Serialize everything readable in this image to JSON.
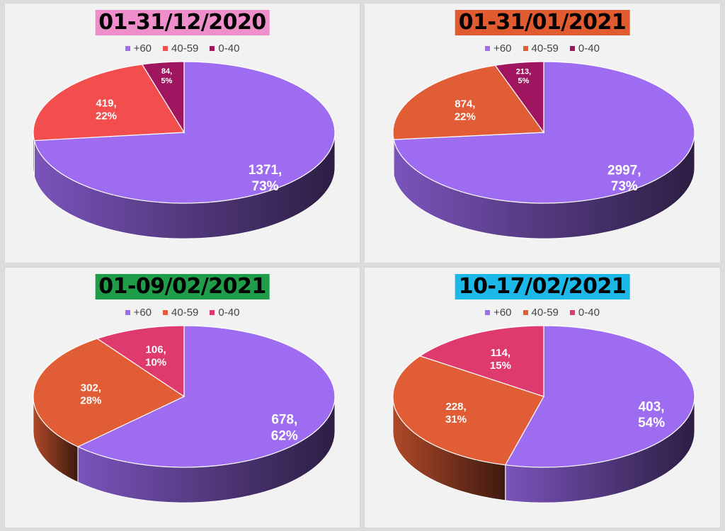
{
  "legend_labels": [
    "+60",
    "40-59",
    "0-40"
  ],
  "chart_data": [
    {
      "type": "pie",
      "title": "01-31/12/2020",
      "title_bg": "#ee8fcb",
      "categories": [
        "+60",
        "40-59",
        "0-40"
      ],
      "values": [
        1371,
        419,
        84
      ],
      "percent_labels": [
        "73%",
        "22%",
        "5%"
      ],
      "colors": [
        "#9d6cf0",
        "#f24e4e",
        "#a0155f"
      ]
    },
    {
      "type": "pie",
      "title": "01-31/01/2021",
      "title_bg": "#e05b2f",
      "categories": [
        "+60",
        "40-59",
        "0-40"
      ],
      "values": [
        2997,
        874,
        213
      ],
      "percent_labels": [
        "73%",
        "22%",
        "5%"
      ],
      "colors": [
        "#9d6cf0",
        "#e05d35",
        "#a0155f"
      ]
    },
    {
      "type": "pie",
      "title": "01-09/02/2021",
      "title_bg": "#1f9d48",
      "categories": [
        "+60",
        "40-59",
        "0-40"
      ],
      "values": [
        678,
        302,
        106
      ],
      "percent_labels": [
        "62%",
        "28%",
        "10%"
      ],
      "colors": [
        "#9d6cf0",
        "#e05d35",
        "#de3a6d"
      ]
    },
    {
      "type": "pie",
      "title": "10-17/02/2021",
      "title_bg": "#1cb8e8",
      "categories": [
        "+60",
        "40-59",
        "0-40"
      ],
      "values": [
        403,
        228,
        114
      ],
      "percent_labels": [
        "54%",
        "31%",
        "15%"
      ],
      "colors": [
        "#9d6cf0",
        "#e05d35",
        "#de3a6d"
      ]
    }
  ]
}
